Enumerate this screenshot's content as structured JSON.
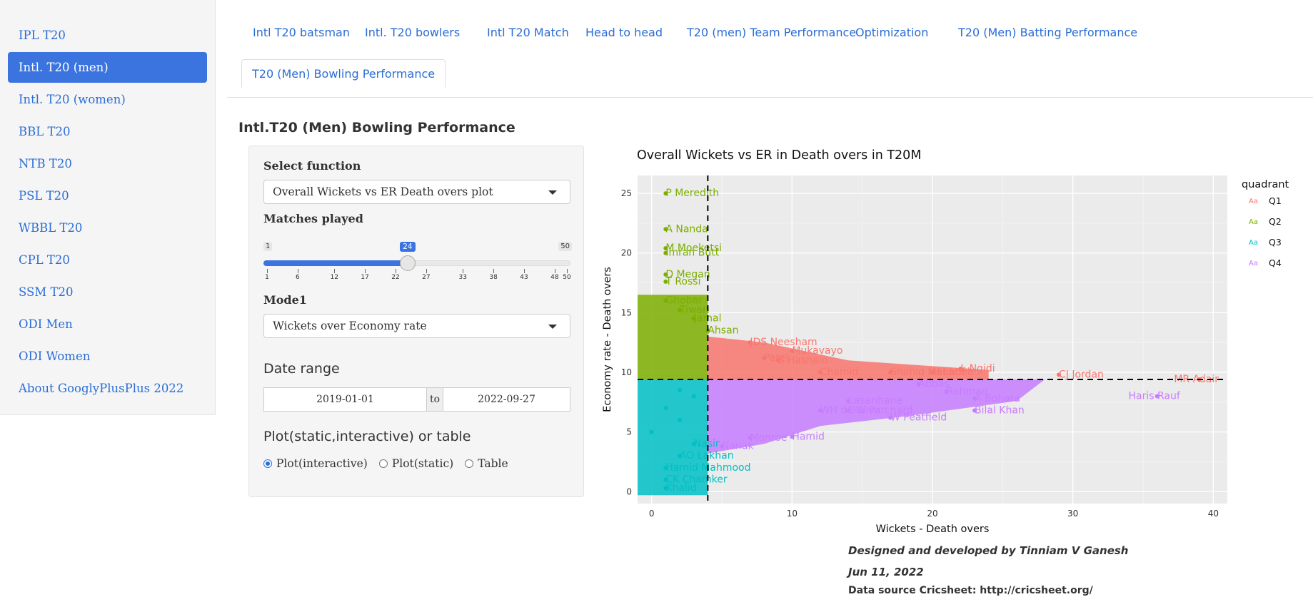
{
  "sidebar": {
    "items": [
      {
        "label": "IPL T20",
        "active": false
      },
      {
        "label": "Intl. T20 (men)",
        "active": true
      },
      {
        "label": "Intl. T20 (women)",
        "active": false
      },
      {
        "label": "BBL T20",
        "active": false
      },
      {
        "label": "NTB T20",
        "active": false
      },
      {
        "label": "PSL T20",
        "active": false
      },
      {
        "label": "WBBL T20",
        "active": false
      },
      {
        "label": "CPL T20",
        "active": false
      },
      {
        "label": "SSM T20",
        "active": false
      },
      {
        "label": "ODI Men",
        "active": false
      },
      {
        "label": "ODI Women",
        "active": false
      },
      {
        "label": "About GooglyPlusPlus 2022",
        "active": false
      }
    ]
  },
  "tabs": [
    {
      "label": "Intl T20 batsman"
    },
    {
      "label": "Intl. T20 bowlers"
    },
    {
      "label": "Intl T20 Match"
    },
    {
      "label": "Head to head"
    },
    {
      "label": "T20 (men) Team Performance"
    },
    {
      "label": "Optimization"
    },
    {
      "label": "T20 (Men) Batting Performance"
    },
    {
      "label": "T20 (Men) Bowling Performance",
      "active": true
    }
  ],
  "page_title": "Intl.T20 (Men) Bowling Performance",
  "controls": {
    "function_label": "Select function",
    "function_value": "Overall Wickets vs ER Death overs plot",
    "matches_label": "Matches played",
    "slider": {
      "min": 1,
      "max": 50,
      "value": 24,
      "ticks": [
        "1",
        "6",
        "12",
        "17",
        "22",
        "27",
        "33",
        "38",
        "43",
        "48",
        "50"
      ]
    },
    "mode_label": "Mode1",
    "mode_value": "Wickets over Economy rate",
    "date_label": "Date range",
    "date_from": "2019-01-01",
    "date_sep": "to",
    "date_to": "2022-09-27",
    "output_label": "Plot(static,interactive) or table",
    "radios": [
      {
        "label": "Plot(interactive)",
        "checked": true
      },
      {
        "label": "Plot(static)",
        "checked": false
      },
      {
        "label": "Table",
        "checked": false
      }
    ]
  },
  "chart_data": {
    "type": "scatter",
    "title": "Overall Wickets vs ER in Death overs in T20M",
    "xlabel": "Wickets - Death overs",
    "ylabel": "Economy rate - Death overs",
    "xlim": [
      -1,
      41
    ],
    "ylim": [
      -1,
      26.5
    ],
    "xticks": [
      0,
      10,
      20,
      30,
      40
    ],
    "yticks": [
      0,
      5,
      10,
      15,
      20,
      25
    ],
    "grid": true,
    "legend_title": "quadrant",
    "legend_position": "right",
    "legend_glyph": "Aa",
    "vline": 4,
    "hline": 9.4,
    "series": [
      {
        "name": "Q1",
        "color": "#F8766D",
        "points": [
          {
            "x": 39,
            "y": 9.4,
            "label": "MR Adair"
          },
          {
            "x": 29,
            "y": 9.8,
            "label": "CJ Jordan"
          },
          {
            "x": 22,
            "y": 10.3,
            "label": "L Ngidi"
          },
          {
            "x": 20,
            "y": 10.0,
            "label": "H Latif"
          },
          {
            "x": 17,
            "y": 10.0,
            "label": "Shahid Mahboob"
          },
          {
            "x": 7,
            "y": 12.5,
            "label": "JDS Neesham"
          },
          {
            "x": 9,
            "y": 11.0,
            "label": "S Hasnain"
          },
          {
            "x": 10,
            "y": 11.8,
            "label": "Mukavayo"
          },
          {
            "x": 8,
            "y": 11.2,
            "label": "Patel"
          },
          {
            "x": 12,
            "y": 10.0,
            "label": "Chamid"
          }
        ]
      },
      {
        "name": "Q2",
        "color": "#7CAE00",
        "points": [
          {
            "x": 1,
            "y": 25.0,
            "label": "P Meredith"
          },
          {
            "x": 1,
            "y": 22.0,
            "label": "A Nanda"
          },
          {
            "x": 1,
            "y": 20.0,
            "label": "Imran Butt"
          },
          {
            "x": 1,
            "y": 20.4,
            "label": "M Moeketsi"
          },
          {
            "x": 1,
            "y": 18.2,
            "label": "D Megan"
          },
          {
            "x": 1,
            "y": 17.6,
            "label": "T Rossi"
          },
          {
            "x": 1,
            "y": 16.0,
            "label": "Ghobar"
          },
          {
            "x": 2,
            "y": 15.2,
            "label": "Tiwari"
          },
          {
            "x": 3,
            "y": 14.5,
            "label": "Jamal"
          },
          {
            "x": 4,
            "y": 13.5,
            "label": "Ahsan"
          }
        ]
      },
      {
        "name": "Q3",
        "color": "#00BFC4",
        "points": [
          {
            "x": 1,
            "y": 2.0,
            "label": "Hamid Mahmood"
          },
          {
            "x": 1,
            "y": 1.0,
            "label": "CK Chamker"
          },
          {
            "x": 1,
            "y": 0.3,
            "label": "Khalid"
          },
          {
            "x": 2,
            "y": 3.0,
            "label": "AO Lakhan"
          },
          {
            "x": 3,
            "y": 4.0,
            "label": "Nasir"
          },
          {
            "x": 2,
            "y": 6.0,
            "label": ""
          },
          {
            "x": 3,
            "y": 8.0,
            "label": ""
          },
          {
            "x": 1,
            "y": 7.0,
            "label": ""
          },
          {
            "x": 0,
            "y": 5.0,
            "label": ""
          },
          {
            "x": 2,
            "y": 8.5,
            "label": ""
          }
        ]
      },
      {
        "name": "Q4",
        "color": "#C77CFF",
        "points": [
          {
            "x": 36,
            "y": 8.0,
            "label": "Haris Rauf"
          },
          {
            "x": 23,
            "y": 7.8,
            "label": "A Bohara"
          },
          {
            "x": 21,
            "y": 8.4,
            "label": "Rahman"
          },
          {
            "x": 23,
            "y": 6.8,
            "label": "Bilal Khan"
          },
          {
            "x": 17,
            "y": 6.2,
            "label": "W Peatfield"
          },
          {
            "x": 14,
            "y": 6.8,
            "label": "DW Parchard"
          },
          {
            "x": 12,
            "y": 6.8,
            "label": "WH de Silva"
          },
          {
            "x": 14,
            "y": 7.6,
            "label": "Lasanhane"
          },
          {
            "x": 10,
            "y": 4.6,
            "label": "Hamid"
          },
          {
            "x": 7,
            "y": 4.5,
            "label": "Monroe"
          },
          {
            "x": 5,
            "y": 3.8,
            "label": "Nanak"
          },
          {
            "x": 19,
            "y": 9.0,
            "label": "Abbas"
          }
        ]
      }
    ]
  },
  "footer": {
    "designed": "Designed and developed by Tinniam V Ganesh",
    "date": "Jun 11, 2022",
    "source": "Data source Cricsheet: http://cricsheet.org/"
  }
}
